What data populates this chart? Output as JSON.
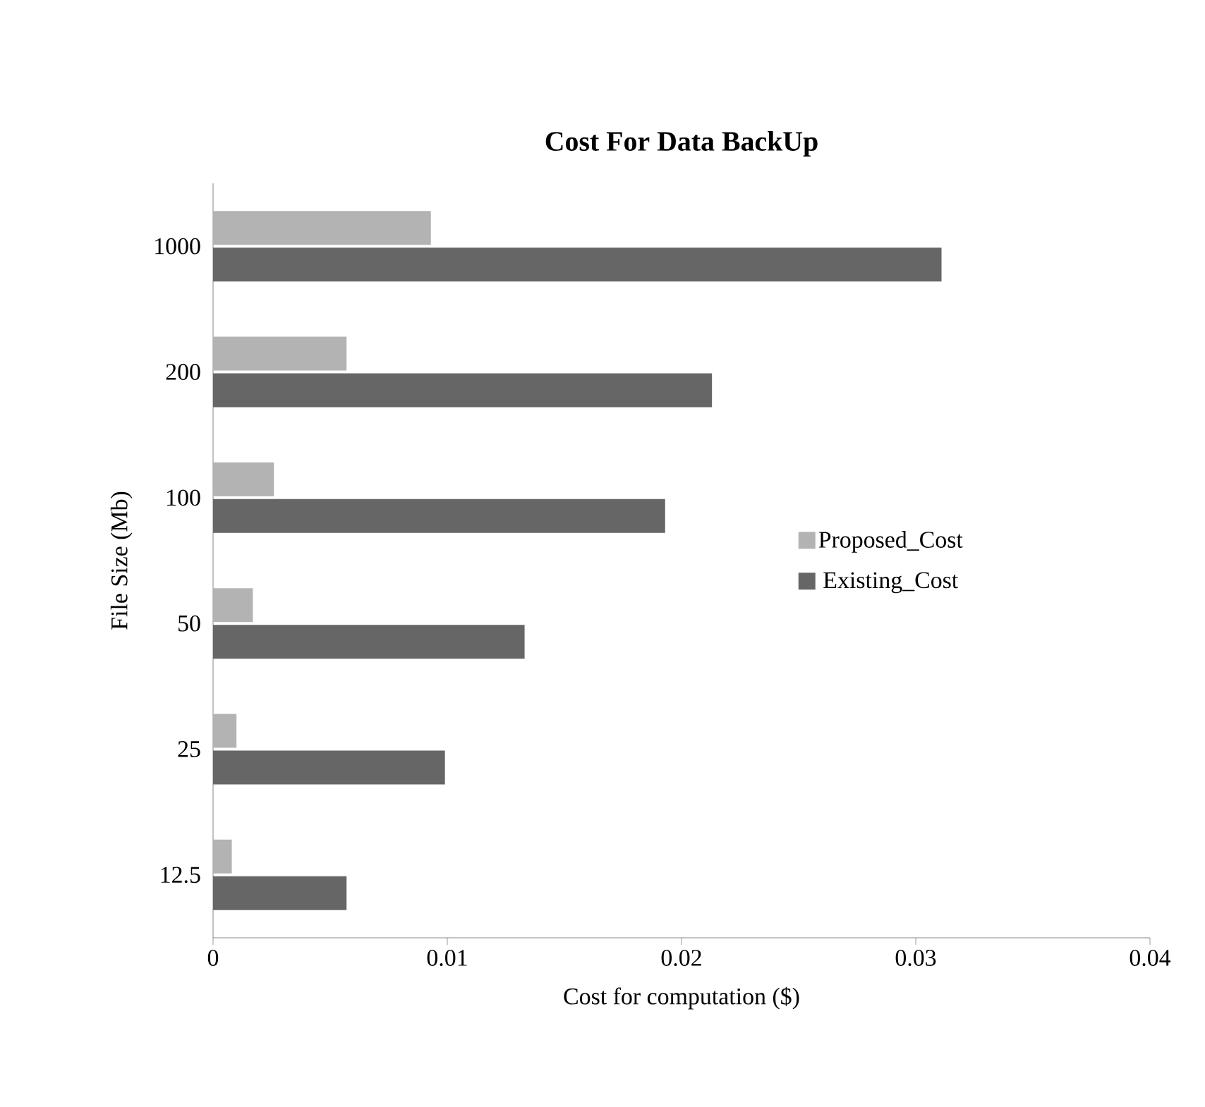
{
  "chart_data": {
    "type": "bar",
    "orientation": "horizontal",
    "title": "Cost For Data BackUp",
    "xlabel": "Cost for computation ($)",
    "ylabel": "File Size (Mb)",
    "categories": [
      "1000",
      "200",
      "100",
      "50",
      "25",
      "12.5"
    ],
    "series": [
      {
        "name": "Proposed_Cost",
        "color": "#b3b3b3",
        "values": [
          0.0093,
          0.0057,
          0.0026,
          0.0017,
          0.001,
          0.0008
        ]
      },
      {
        "name": "Existing_Cost",
        "color": "#666666",
        "values": [
          0.0311,
          0.0213,
          0.0193,
          0.0133,
          0.0099,
          0.0057
        ]
      }
    ],
    "xlim": [
      0,
      0.04
    ],
    "xticks": [
      0,
      0.01,
      0.02,
      0.03,
      0.04
    ],
    "grid": false,
    "legend": "right"
  }
}
